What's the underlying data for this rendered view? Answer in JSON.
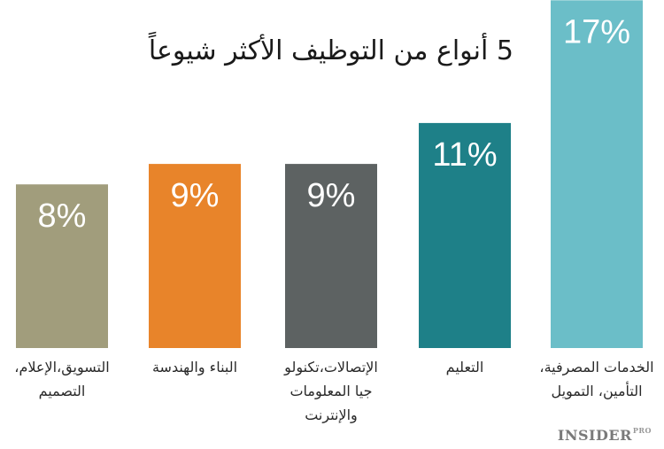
{
  "chart_data": {
    "type": "bar",
    "title": "5 أنواع من التوظيف الأكثر شيوعاً",
    "categories": [
      "التسويق،الإعلام، التصميم",
      "البناء والهندسة",
      "الإتصالات،تكنولو جيا المعلومات والإنترنت",
      "التعليم",
      "الخدمات المصرفية، التأمين، التمويل"
    ],
    "category_lines": [
      [
        "التسويق،الإعلام،",
        "التصميم"
      ],
      [
        "البناء والهندسة"
      ],
      [
        "الإتصالات،تكنولو",
        "جيا المعلومات",
        "والإنترنت"
      ],
      [
        "التعليم"
      ],
      [
        "الخدمات المصرفية،",
        "التأمين، التمويل"
      ]
    ],
    "values": [
      8,
      9,
      9,
      11,
      17
    ],
    "value_labels": [
      "8%",
      "9%",
      "9%",
      "11%",
      "17%"
    ],
    "colors": [
      "#a19d7c",
      "#e8842a",
      "#5d6262",
      "#1e8088",
      "#6bbec8"
    ],
    "xlabel": "",
    "ylabel": "",
    "unit": "%",
    "grid": false,
    "legend": "none"
  },
  "brand": {
    "name": "INSIDER",
    "suffix": "PRO"
  }
}
